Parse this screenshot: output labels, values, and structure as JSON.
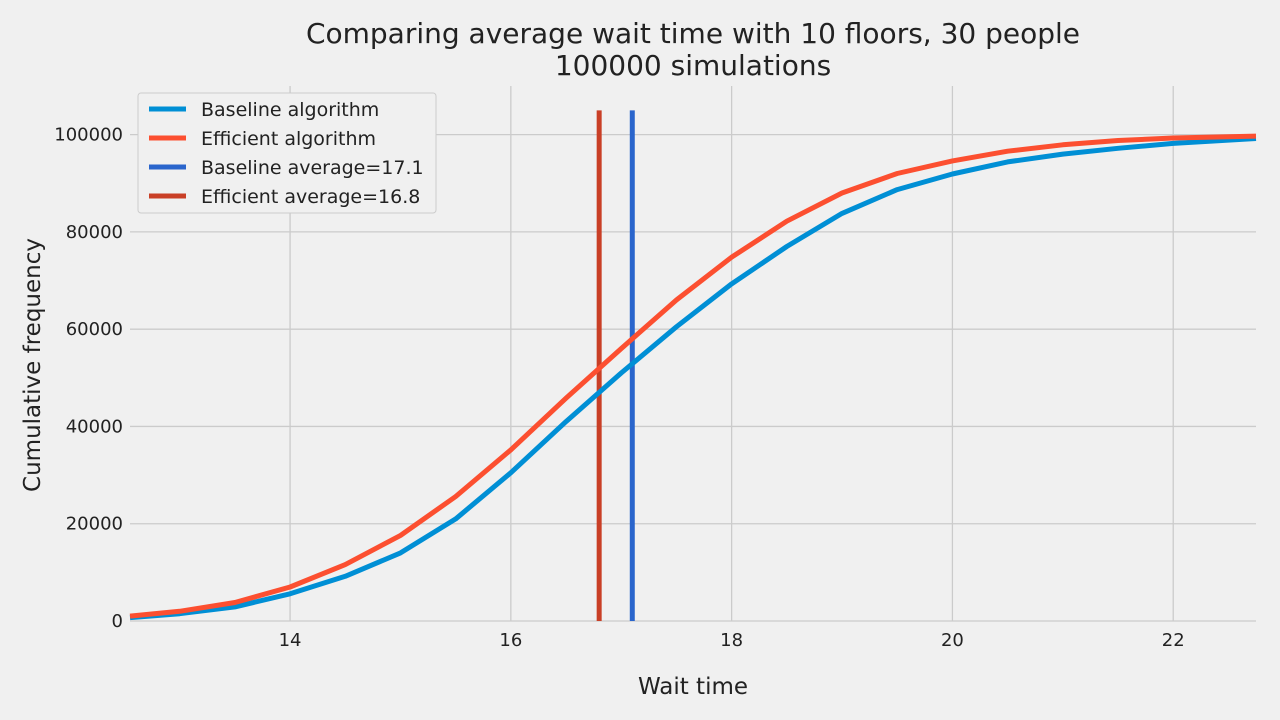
{
  "chart_data": {
    "type": "line",
    "title": "Comparing average wait time with 10 floors, 30 people",
    "subtitle": "100000 simulations",
    "xlabel": "Wait time",
    "ylabel": "Cumulative frequency",
    "xlim": [
      12.55,
      22.75
    ],
    "ylim": [
      0,
      110000
    ],
    "xticks": [
      14,
      16,
      18,
      20,
      22
    ],
    "yticks": [
      0,
      20000,
      40000,
      60000,
      80000,
      100000
    ],
    "grid": true,
    "legend_position": "top-left",
    "series": [
      {
        "name": "Baseline algorithm",
        "color": "#008fd5",
        "x": [
          12.55,
          13.0,
          13.5,
          14.0,
          14.5,
          15.0,
          15.5,
          16.0,
          16.5,
          17.0,
          17.5,
          18.0,
          18.5,
          19.0,
          19.5,
          20.0,
          20.5,
          21.0,
          21.5,
          22.0,
          22.75
        ],
        "y": [
          700,
          1500,
          2900,
          5600,
          9200,
          14000,
          21000,
          30500,
          41000,
          51000,
          60500,
          69300,
          77000,
          83800,
          88700,
          91900,
          94400,
          96000,
          97200,
          98200,
          99200
        ]
      },
      {
        "name": "Efficient algorithm",
        "color": "#fc4f30",
        "x": [
          12.55,
          13.0,
          13.5,
          14.0,
          14.5,
          15.0,
          15.5,
          16.0,
          16.5,
          17.0,
          17.5,
          18.0,
          18.5,
          19.0,
          19.5,
          20.0,
          20.5,
          21.0,
          21.5,
          22.0,
          22.75
        ],
        "y": [
          1000,
          2000,
          3800,
          7000,
          11600,
          17600,
          25600,
          35200,
          45800,
          56000,
          66000,
          74800,
          82200,
          88000,
          92000,
          94600,
          96600,
          97900,
          98800,
          99300,
          99700
        ]
      }
    ],
    "vlines": [
      {
        "name": "Baseline average=17.1",
        "x": 17.1,
        "ymin": 0,
        "ymax": 105000,
        "color": "#2a65cc"
      },
      {
        "name": "Efficient average=16.8",
        "x": 16.8,
        "ymin": 0,
        "ymax": 105000,
        "color": "#c93f26"
      }
    ]
  }
}
